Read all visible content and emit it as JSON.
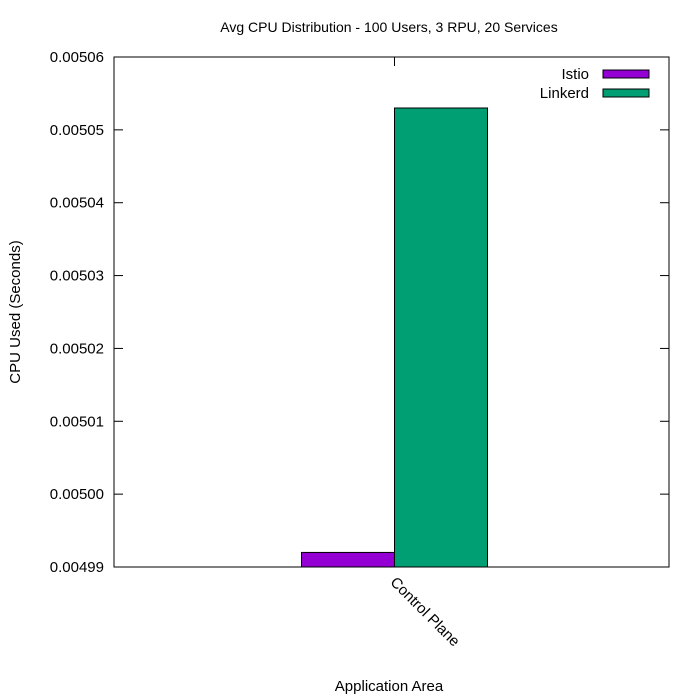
{
  "chart_data": {
    "type": "bar",
    "title": "Avg CPU Distribution - 100 Users, 3 RPU, 20 Services",
    "xlabel": "Application Area",
    "ylabel": "CPU Used (Seconds)",
    "ylim": [
      0.00499,
      0.00506
    ],
    "yticks": [
      "0.00499",
      "0.00500",
      "0.00501",
      "0.00502",
      "0.00503",
      "0.00504",
      "0.00505",
      "0.00506"
    ],
    "categories": [
      "Control Plane"
    ],
    "series": [
      {
        "name": "Istio",
        "color": "#9400d3",
        "values": [
          0.004992
        ]
      },
      {
        "name": "Linkerd",
        "color": "#009e73",
        "values": [
          0.005053
        ]
      }
    ],
    "legend": "top-right",
    "grid": false
  }
}
